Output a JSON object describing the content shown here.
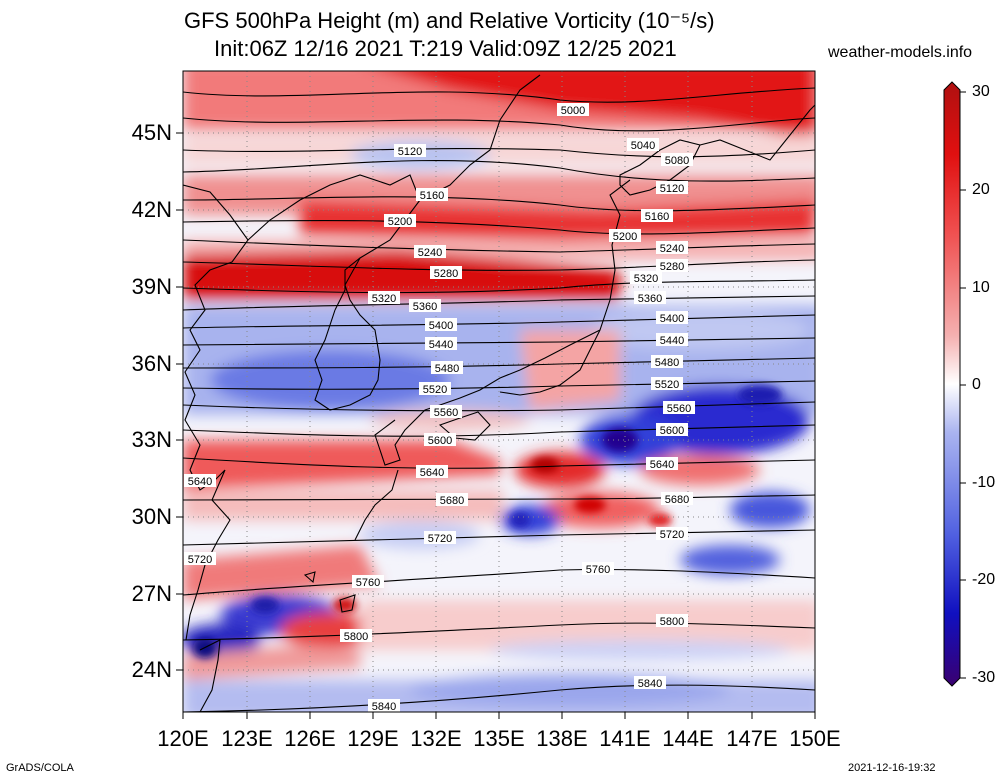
{
  "title_line1": "GFS 500hPa Height (m) and Relative Vorticity (10⁻⁵/s)",
  "title_line2": "Init:06Z 12/16 2021 T:219 Valid:09Z 12/25 2021",
  "site": "weather-models.info",
  "lat_labels": [
    "45N",
    "42N",
    "39N",
    "36N",
    "33N",
    "30N",
    "27N",
    "24N"
  ],
  "lon_labels": [
    "120E",
    "123E",
    "126E",
    "129E",
    "132E",
    "135E",
    "138E",
    "141E",
    "144E",
    "147E",
    "150E"
  ],
  "colorbar": {
    "labels": [
      "30",
      "20",
      "10",
      "0",
      "-10",
      "-20",
      "-30"
    ],
    "colors": [
      "#3a0070",
      "#1010c0",
      "#5060e0",
      "#aab4f0",
      "#ffffff",
      "#f4b0b0",
      "#f05050",
      "#e01010",
      "#b01010"
    ]
  },
  "contours": [
    {
      "label": "5000",
      "tags": [
        [
          573,
          110
        ]
      ]
    },
    {
      "label": "5040",
      "tags": [
        [
          643,
          145
        ]
      ]
    },
    {
      "label": "5080",
      "tags": [
        [
          677,
          160
        ]
      ]
    },
    {
      "label": "5120",
      "tags": [
        [
          410,
          151
        ],
        [
          672,
          188
        ]
      ]
    },
    {
      "label": "5160",
      "tags": [
        [
          432,
          195
        ],
        [
          657,
          216
        ]
      ]
    },
    {
      "label": "5200",
      "tags": [
        [
          400,
          221
        ],
        [
          625,
          236
        ]
      ]
    },
    {
      "label": "5240",
      "tags": [
        [
          430,
          252
        ],
        [
          672,
          248
        ]
      ]
    },
    {
      "label": "5280",
      "tags": [
        [
          446,
          273
        ],
        [
          672,
          266
        ]
      ]
    },
    {
      "label": "5320",
      "tags": [
        [
          384,
          298
        ],
        [
          646,
          278
        ]
      ]
    },
    {
      "label": "5360",
      "tags": [
        [
          425,
          306
        ],
        [
          650,
          298
        ]
      ]
    },
    {
      "label": "5400",
      "tags": [
        [
          441,
          325
        ],
        [
          672,
          318
        ]
      ]
    },
    {
      "label": "5440",
      "tags": [
        [
          441,
          344
        ],
        [
          672,
          340
        ]
      ]
    },
    {
      "label": "5480",
      "tags": [
        [
          447,
          368
        ],
        [
          667,
          362
        ]
      ]
    },
    {
      "label": "5520",
      "tags": [
        [
          435,
          389
        ],
        [
          667,
          384
        ]
      ]
    },
    {
      "label": "5560",
      "tags": [
        [
          446,
          412
        ],
        [
          679,
          408
        ]
      ]
    },
    {
      "label": "5600",
      "tags": [
        [
          440,
          440
        ],
        [
          672,
          430
        ]
      ]
    },
    {
      "label": "5640",
      "tags": [
        [
          200,
          481
        ],
        [
          432,
          472
        ],
        [
          662,
          464
        ]
      ]
    },
    {
      "label": "5680",
      "tags": [
        [
          452,
          500
        ],
        [
          677,
          499
        ]
      ]
    },
    {
      "label": "5720",
      "tags": [
        [
          200,
          559
        ],
        [
          440,
          538
        ],
        [
          672,
          534
        ]
      ]
    },
    {
      "label": "5760",
      "tags": [
        [
          368,
          582
        ],
        [
          598,
          569
        ]
      ]
    },
    {
      "label": "5800",
      "tags": [
        [
          356,
          636
        ],
        [
          672,
          621
        ]
      ]
    },
    {
      "label": "5840",
      "tags": [
        [
          650,
          683
        ],
        [
          384,
          706
        ]
      ]
    }
  ],
  "footer_left": "GrADS/COLA",
  "footer_right": "2021-12-16-19:32"
}
